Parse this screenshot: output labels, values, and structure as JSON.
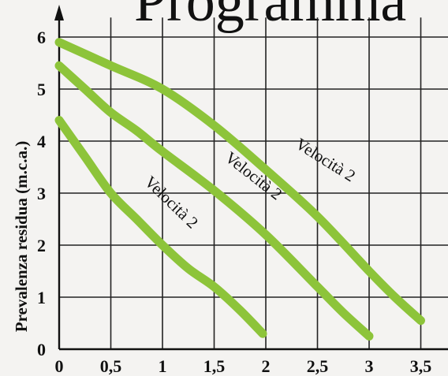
{
  "heading_fragment": "Programma",
  "chart_data": {
    "type": "line",
    "title": "",
    "xlabel": "",
    "ylabel": "Prevalenza residua (m.c.a.)",
    "xlim": [
      0,
      3.75
    ],
    "ylim": [
      0,
      6.3
    ],
    "x_ticks": [
      "0",
      "0,5",
      "1",
      "1,5",
      "2",
      "2,5",
      "3",
      "3,5"
    ],
    "y_ticks": [
      "0",
      "1",
      "2",
      "3",
      "4",
      "5",
      "6"
    ],
    "grid": true,
    "curve_color": "#8dc43a",
    "series": [
      {
        "name": "Velocità 2",
        "points": [
          [
            0,
            4.4
          ],
          [
            0.25,
            3.7
          ],
          [
            0.5,
            3.0
          ],
          [
            0.75,
            2.5
          ],
          [
            1.0,
            2.0
          ],
          [
            1.25,
            1.55
          ],
          [
            1.5,
            1.2
          ],
          [
            1.75,
            0.75
          ],
          [
            1.97,
            0.3
          ]
        ],
        "label_at": [
          1.05,
          2.75
        ],
        "label_angle": 44
      },
      {
        "name": "Velocità 2",
        "points": [
          [
            0,
            5.45
          ],
          [
            0.25,
            5.0
          ],
          [
            0.5,
            4.55
          ],
          [
            0.75,
            4.2
          ],
          [
            1.0,
            3.8
          ],
          [
            1.5,
            3.05
          ],
          [
            2.0,
            2.2
          ],
          [
            2.5,
            1.2
          ],
          [
            2.75,
            0.7
          ],
          [
            3.0,
            0.25
          ]
        ],
        "label_at": [
          1.85,
          3.25
        ],
        "label_angle": 38
      },
      {
        "name": "Velocità 2",
        "points": [
          [
            0,
            5.9
          ],
          [
            0.5,
            5.45
          ],
          [
            1.0,
            5.0
          ],
          [
            1.5,
            4.3
          ],
          [
            2.0,
            3.45
          ],
          [
            2.5,
            2.55
          ],
          [
            3.0,
            1.5
          ],
          [
            3.25,
            1.0
          ],
          [
            3.5,
            0.55
          ]
        ],
        "label_at": [
          2.55,
          3.55
        ],
        "label_angle": 32
      }
    ]
  }
}
